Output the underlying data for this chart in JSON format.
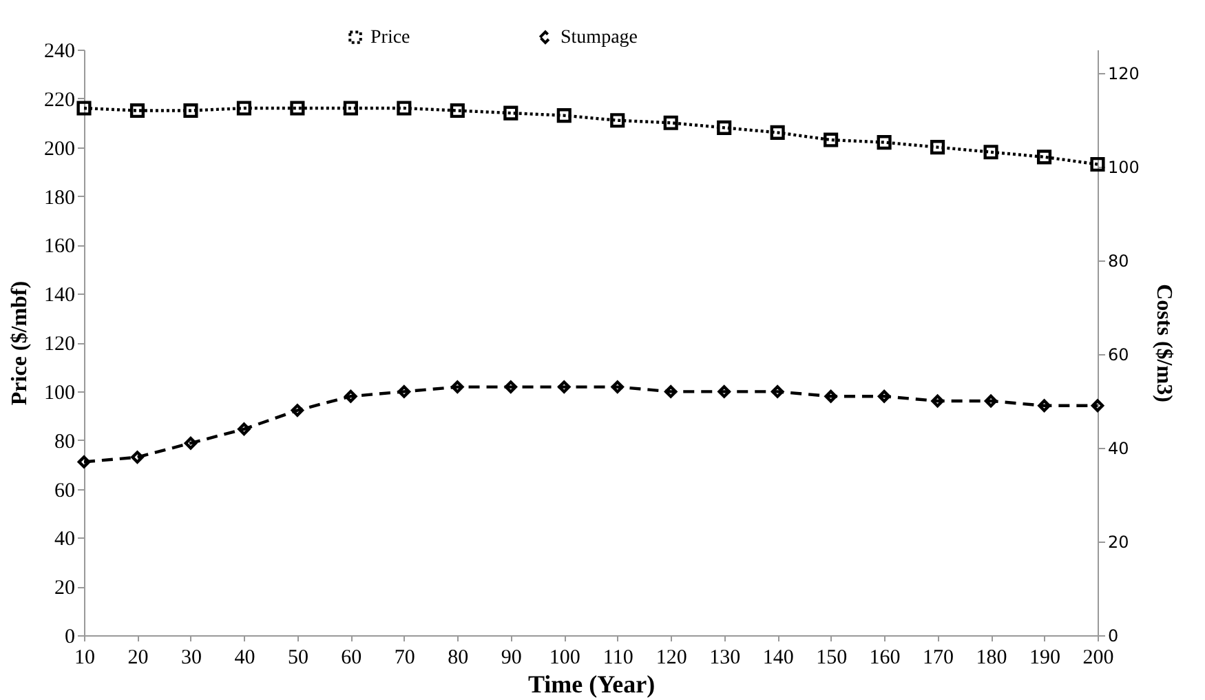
{
  "chart_data": {
    "type": "line",
    "xlabel": "Time (Year)",
    "ylabel": "Price ($/mbf)",
    "y2label": "Costs ($/m3)",
    "x": [
      10,
      20,
      30,
      40,
      50,
      60,
      70,
      80,
      90,
      100,
      110,
      120,
      130,
      140,
      150,
      160,
      170,
      180,
      190,
      200
    ],
    "series": [
      {
        "name": "Price",
        "color": "#000000",
        "marker": "square",
        "line_style": "dotted",
        "values": [
          216,
          215,
          215,
          216,
          216,
          216,
          216,
          215,
          214,
          213,
          211,
          210,
          208,
          206,
          203,
          202,
          200,
          198,
          196,
          193
        ]
      },
      {
        "name": "Stumpage",
        "color": "#000000",
        "marker": "diamond",
        "line_style": "dashed",
        "axis": "y2",
        "values": [
          37,
          38,
          41,
          44,
          48,
          51,
          52,
          53,
          53,
          53,
          53,
          52,
          52,
          52,
          51,
          51,
          50,
          50,
          49,
          49
        ]
      }
    ],
    "xlim": [
      10,
      200
    ],
    "xticks": [
      10,
      20,
      30,
      40,
      50,
      60,
      70,
      80,
      90,
      100,
      110,
      120,
      130,
      140,
      150,
      160,
      170,
      180,
      190,
      200
    ],
    "ylim": [
      0,
      240
    ],
    "yticks": [
      0,
      20,
      40,
      60,
      80,
      100,
      120,
      140,
      160,
      180,
      200,
      220,
      240
    ],
    "y2lim": [
      0,
      125
    ],
    "y2ticks": [
      0,
      20,
      40,
      60,
      80,
      100,
      120
    ],
    "grid": false,
    "legend": "top"
  }
}
